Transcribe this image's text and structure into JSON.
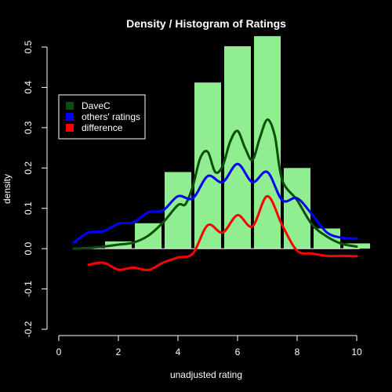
{
  "chart_data": {
    "type": "bar",
    "title": "Density / Histogram of Ratings",
    "xlabel": "unadjusted rating",
    "ylabel": "density",
    "xlim": [
      0,
      10
    ],
    "ylim": [
      -0.2,
      0.5
    ],
    "x_ticks": [
      "0",
      "2",
      "4",
      "6",
      "8",
      "10"
    ],
    "x_tick_values": [
      0,
      2,
      4,
      6,
      8,
      10
    ],
    "y_ticks": [
      "-0.2",
      "-0.1",
      "0.0",
      "0.1",
      "0.2",
      "0.3",
      "0.4",
      "0.5"
    ],
    "y_tick_values": [
      -0.2,
      -0.1,
      0.0,
      0.1,
      0.2,
      0.3,
      0.4,
      0.5
    ],
    "grid": false,
    "legend_position": "top-left",
    "histogram": {
      "color": "#90EE90",
      "bins": [
        {
          "x0": 1.5,
          "x1": 2.5,
          "density": 0.018
        },
        {
          "x0": 2.5,
          "x1": 3.5,
          "density": 0.063
        },
        {
          "x0": 3.5,
          "x1": 4.5,
          "density": 0.19
        },
        {
          "x0": 4.5,
          "x1": 5.5,
          "density": 0.412
        },
        {
          "x0": 5.5,
          "x1": 6.5,
          "density": 0.502
        },
        {
          "x0": 6.5,
          "x1": 7.5,
          "density": 0.527
        },
        {
          "x0": 7.5,
          "x1": 8.5,
          "density": 0.2
        },
        {
          "x0": 8.5,
          "x1": 9.5,
          "density": 0.05
        },
        {
          "x0": 9.5,
          "x1": 10.5,
          "density": 0.013
        }
      ]
    },
    "series": [
      {
        "name": "DaveC",
        "type": "line",
        "color": "#0B4D0B",
        "x": [
          0.5,
          1.0,
          1.5,
          2.0,
          2.5,
          3.0,
          3.5,
          4.0,
          4.25,
          4.5,
          4.75,
          5.0,
          5.25,
          5.5,
          5.75,
          6.0,
          6.25,
          6.5,
          6.75,
          7.0,
          7.25,
          7.5,
          8.0,
          8.5,
          9.0,
          9.5,
          10.0
        ],
        "y": [
          0.0,
          0.002,
          0.005,
          0.01,
          0.015,
          0.032,
          0.065,
          0.108,
          0.11,
          0.155,
          0.225,
          0.24,
          0.19,
          0.205,
          0.265,
          0.292,
          0.25,
          0.22,
          0.275,
          0.32,
          0.28,
          0.17,
          0.12,
          0.06,
          0.03,
          0.012,
          0.005
        ]
      },
      {
        "name": "others' ratings",
        "type": "line",
        "color": "#0000FF",
        "x": [
          0.5,
          1.0,
          1.5,
          2.0,
          2.5,
          3.0,
          3.5,
          4.0,
          4.5,
          5.0,
          5.5,
          6.0,
          6.5,
          7.0,
          7.5,
          8.0,
          8.5,
          9.0,
          9.5,
          10.0
        ],
        "y": [
          0.015,
          0.04,
          0.043,
          0.062,
          0.065,
          0.09,
          0.095,
          0.13,
          0.125,
          0.18,
          0.165,
          0.21,
          0.165,
          0.19,
          0.12,
          0.125,
          0.085,
          0.04,
          0.027,
          0.025
        ]
      },
      {
        "name": "difference",
        "type": "line",
        "color": "#FF0000",
        "x": [
          1.0,
          1.5,
          2.0,
          2.5,
          3.0,
          3.5,
          4.0,
          4.5,
          5.0,
          5.5,
          6.0,
          6.5,
          7.0,
          7.5,
          8.0,
          8.5,
          9.0,
          9.5,
          10.0
        ],
        "y": [
          -0.04,
          -0.035,
          -0.052,
          -0.047,
          -0.053,
          -0.035,
          -0.022,
          -0.012,
          0.058,
          0.04,
          0.083,
          0.055,
          0.13,
          0.058,
          -0.005,
          -0.012,
          -0.018,
          -0.018,
          -0.019
        ]
      }
    ]
  }
}
